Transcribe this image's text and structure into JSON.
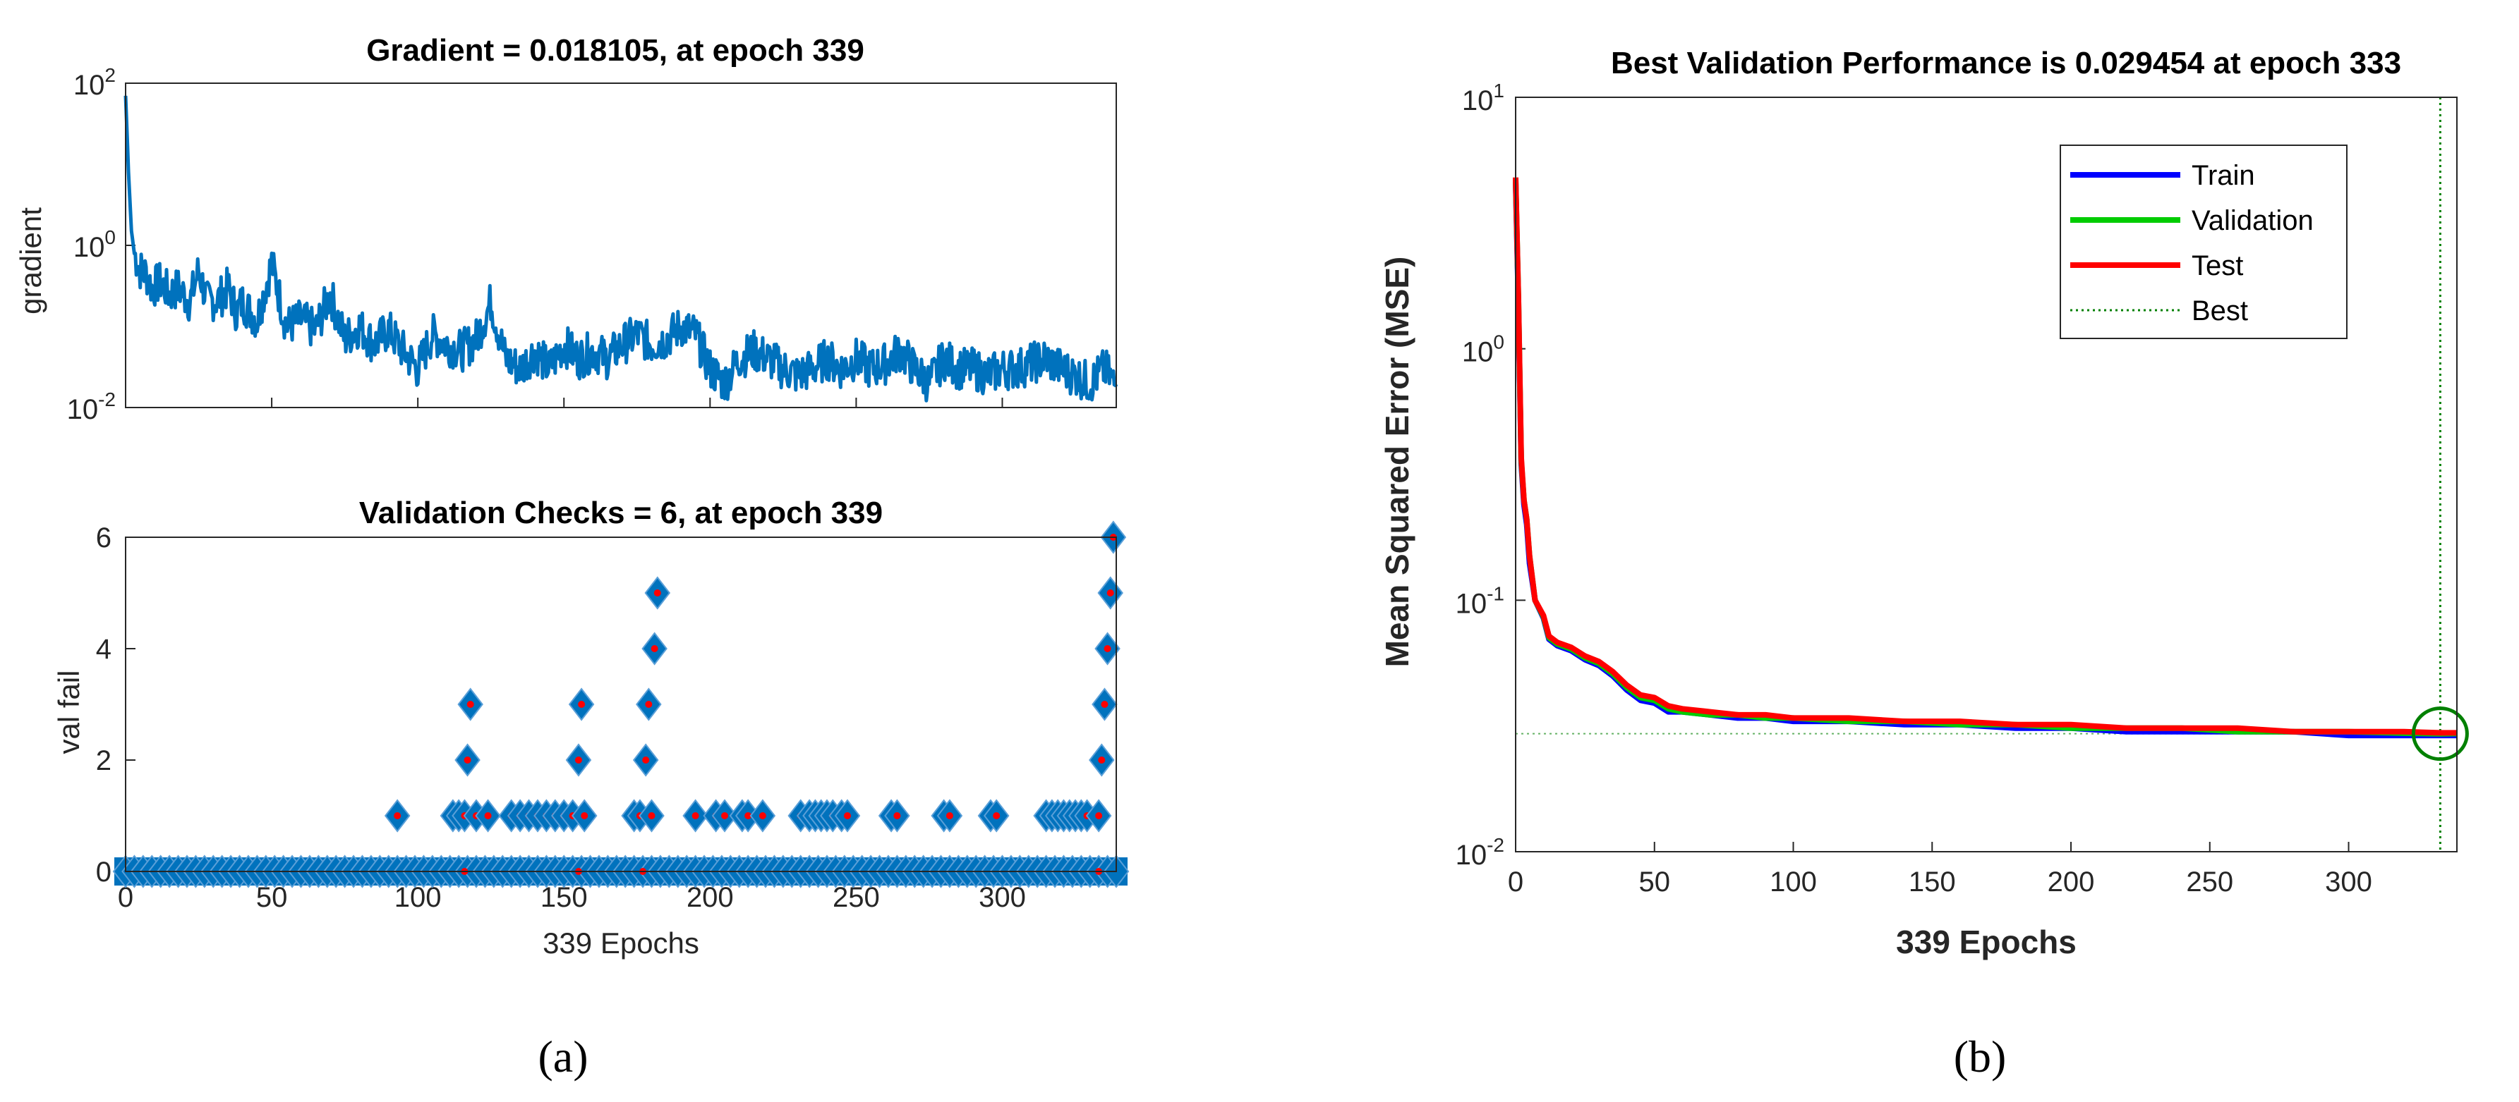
{
  "chart_data": [
    {
      "id": "gradient",
      "type": "line",
      "title": "Gradient = 0.018105, at epoch 339",
      "ylabel": "gradient",
      "xlabel": "",
      "yscale": "log",
      "ylim": [
        0.01,
        100
      ],
      "xlim": [
        0,
        339
      ],
      "ytick_labels": [
        {
          "base": "10",
          "exp": "2",
          "value": 100
        },
        {
          "base": "10",
          "exp": "0",
          "value": 1
        },
        {
          "base": "10",
          "exp": "-2",
          "value": 0.01
        }
      ],
      "color": "#0072BD",
      "x": [
        0,
        1,
        2,
        3,
        5,
        7,
        9,
        12,
        15,
        18,
        22,
        25,
        28,
        32,
        35,
        38,
        40,
        45,
        50,
        55,
        60,
        65,
        70,
        75,
        80,
        85,
        90,
        95,
        100,
        105,
        110,
        115,
        120,
        125,
        130,
        135,
        140,
        145,
        150,
        155,
        160,
        165,
        170,
        175,
        180,
        185,
        190,
        195,
        200,
        205,
        210,
        215,
        220,
        225,
        230,
        235,
        240,
        245,
        250,
        255,
        260,
        265,
        270,
        275,
        280,
        285,
        290,
        295,
        300,
        305,
        310,
        315,
        320,
        325,
        330,
        335,
        339
      ],
      "values": [
        70,
        8,
        1.5,
        0.8,
        0.5,
        0.45,
        0.3,
        0.35,
        0.25,
        0.3,
        0.2,
        0.5,
        0.2,
        0.22,
        0.3,
        0.15,
        0.2,
        0.12,
        0.6,
        0.1,
        0.12,
        0.09,
        0.25,
        0.07,
        0.1,
        0.06,
        0.09,
        0.05,
        0.03,
        0.08,
        0.06,
        0.05,
        0.07,
        0.2,
        0.04,
        0.03,
        0.05,
        0.03,
        0.06,
        0.04,
        0.05,
        0.04,
        0.06,
        0.08,
        0.06,
        0.07,
        0.1,
        0.08,
        0.03,
        0.02,
        0.04,
        0.05,
        0.04,
        0.03,
        0.025,
        0.03,
        0.04,
        0.03,
        0.04,
        0.03,
        0.035,
        0.05,
        0.03,
        0.02,
        0.04,
        0.03,
        0.03,
        0.025,
        0.03,
        0.03,
        0.035,
        0.04,
        0.03,
        0.025,
        0.02,
        0.03,
        0.018105
      ]
    },
    {
      "id": "valfail",
      "type": "scatter",
      "title": "Validation Checks = 6, at epoch 339",
      "xlabel": "339 Epochs",
      "ylabel": "val fail",
      "xlim": [
        0,
        339
      ],
      "ylim": [
        0,
        6
      ],
      "xticks": [
        0,
        50,
        100,
        150,
        200,
        250,
        300
      ],
      "yticks": [
        0,
        2,
        4,
        6
      ],
      "marker_face": "#0072BD",
      "marker_dot": "#FF0000",
      "points": [
        [
          93,
          1
        ],
        [
          112,
          1
        ],
        [
          114,
          1
        ],
        [
          116,
          1
        ],
        [
          117,
          2
        ],
        [
          118,
          3
        ],
        [
          120,
          1
        ],
        [
          124,
          1
        ],
        [
          132,
          1
        ],
        [
          135,
          1
        ],
        [
          138,
          1
        ],
        [
          141,
          1
        ],
        [
          144,
          1
        ],
        [
          147,
          1
        ],
        [
          150,
          1
        ],
        [
          153,
          1
        ],
        [
          155,
          2
        ],
        [
          156,
          3
        ],
        [
          157,
          1
        ],
        [
          174,
          1
        ],
        [
          176,
          1
        ],
        [
          178,
          2
        ],
        [
          179,
          3
        ],
        [
          180,
          1
        ],
        [
          181,
          4
        ],
        [
          182,
          5
        ],
        [
          195,
          1
        ],
        [
          202,
          1
        ],
        [
          205,
          1
        ],
        [
          211,
          1
        ],
        [
          213,
          1
        ],
        [
          218,
          1
        ],
        [
          231,
          1
        ],
        [
          234,
          1
        ],
        [
          236,
          1
        ],
        [
          238,
          1
        ],
        [
          240,
          1
        ],
        [
          242,
          1
        ],
        [
          245,
          1
        ],
        [
          247,
          1
        ],
        [
          262,
          1
        ],
        [
          264,
          1
        ],
        [
          280,
          1
        ],
        [
          282,
          1
        ],
        [
          296,
          1
        ],
        [
          298,
          1
        ],
        [
          315,
          1
        ],
        [
          317,
          1
        ],
        [
          319,
          1
        ],
        [
          321,
          1
        ],
        [
          323,
          1
        ],
        [
          325,
          1
        ],
        [
          327,
          1
        ],
        [
          329,
          1
        ],
        [
          333,
          1
        ],
        [
          334,
          2
        ],
        [
          335,
          3
        ],
        [
          336,
          4
        ],
        [
          337,
          5
        ],
        [
          338,
          6
        ]
      ]
    },
    {
      "id": "performance",
      "type": "line",
      "title": "Best Validation Performance is 0.029454 at epoch 333",
      "xlabel": "339 Epochs",
      "ylabel": "Mean Squared Error  (MSE)",
      "yscale": "log",
      "ylim": [
        0.01,
        10
      ],
      "xlim": [
        0,
        339
      ],
      "xticks": [
        0,
        50,
        100,
        150,
        200,
        250,
        300
      ],
      "ytick_labels": [
        {
          "base": "10",
          "exp": "1",
          "value": 10
        },
        {
          "base": "10",
          "exp": "0",
          "value": 1
        },
        {
          "base": "10",
          "exp": "-1",
          "value": 0.1
        },
        {
          "base": "10",
          "exp": "-2",
          "value": 0.01
        }
      ],
      "legend": {
        "position": "top-right",
        "entries": [
          "Train",
          "Validation",
          "Test",
          "Best"
        ]
      },
      "best": {
        "epoch": 333,
        "value": 0.029454,
        "color": "#008000"
      },
      "series": [
        {
          "name": "Train",
          "color": "#0000FF",
          "x": [
            0,
            1,
            2,
            3,
            4,
            5,
            7,
            10,
            12,
            15,
            20,
            25,
            30,
            35,
            40,
            45,
            50,
            55,
            60,
            70,
            80,
            90,
            100,
            120,
            140,
            160,
            180,
            200,
            220,
            240,
            260,
            280,
            300,
            320,
            333,
            339
          ],
          "values": [
            4.6,
            1.5,
            0.35,
            0.24,
            0.2,
            0.14,
            0.1,
            0.085,
            0.07,
            0.066,
            0.063,
            0.058,
            0.055,
            0.05,
            0.044,
            0.04,
            0.039,
            0.036,
            0.036,
            0.035,
            0.034,
            0.034,
            0.033,
            0.033,
            0.032,
            0.032,
            0.031,
            0.031,
            0.03,
            0.03,
            0.03,
            0.03,
            0.029,
            0.029,
            0.029,
            0.029
          ]
        },
        {
          "name": "Validation",
          "color": "#00CC00",
          "x": [
            0,
            1,
            2,
            3,
            4,
            5,
            7,
            10,
            12,
            15,
            20,
            25,
            30,
            35,
            40,
            45,
            50,
            55,
            60,
            70,
            80,
            90,
            100,
            120,
            140,
            160,
            180,
            200,
            220,
            240,
            260,
            280,
            300,
            320,
            333,
            339
          ],
          "values": [
            4.7,
            1.6,
            0.36,
            0.25,
            0.21,
            0.15,
            0.1,
            0.086,
            0.071,
            0.067,
            0.064,
            0.059,
            0.056,
            0.051,
            0.045,
            0.041,
            0.04,
            0.037,
            0.036,
            0.035,
            0.035,
            0.034,
            0.034,
            0.033,
            0.033,
            0.032,
            0.032,
            0.031,
            0.031,
            0.031,
            0.03,
            0.03,
            0.03,
            0.0296,
            0.029454,
            0.0295
          ]
        },
        {
          "name": "Test",
          "color": "#FF0000",
          "x": [
            0,
            1,
            2,
            3,
            4,
            5,
            7,
            10,
            12,
            15,
            20,
            25,
            30,
            35,
            40,
            45,
            50,
            55,
            60,
            70,
            80,
            90,
            100,
            120,
            140,
            160,
            180,
            200,
            220,
            240,
            260,
            280,
            300,
            320,
            333,
            339
          ],
          "values": [
            4.8,
            1.6,
            0.37,
            0.25,
            0.21,
            0.15,
            0.1,
            0.087,
            0.072,
            0.068,
            0.065,
            0.06,
            0.057,
            0.052,
            0.046,
            0.042,
            0.041,
            0.038,
            0.037,
            0.036,
            0.035,
            0.035,
            0.034,
            0.034,
            0.033,
            0.033,
            0.032,
            0.032,
            0.031,
            0.031,
            0.031,
            0.03,
            0.03,
            0.03,
            0.0297,
            0.0297
          ]
        }
      ]
    }
  ],
  "captions": {
    "a": "(a)",
    "b": "(b)"
  }
}
